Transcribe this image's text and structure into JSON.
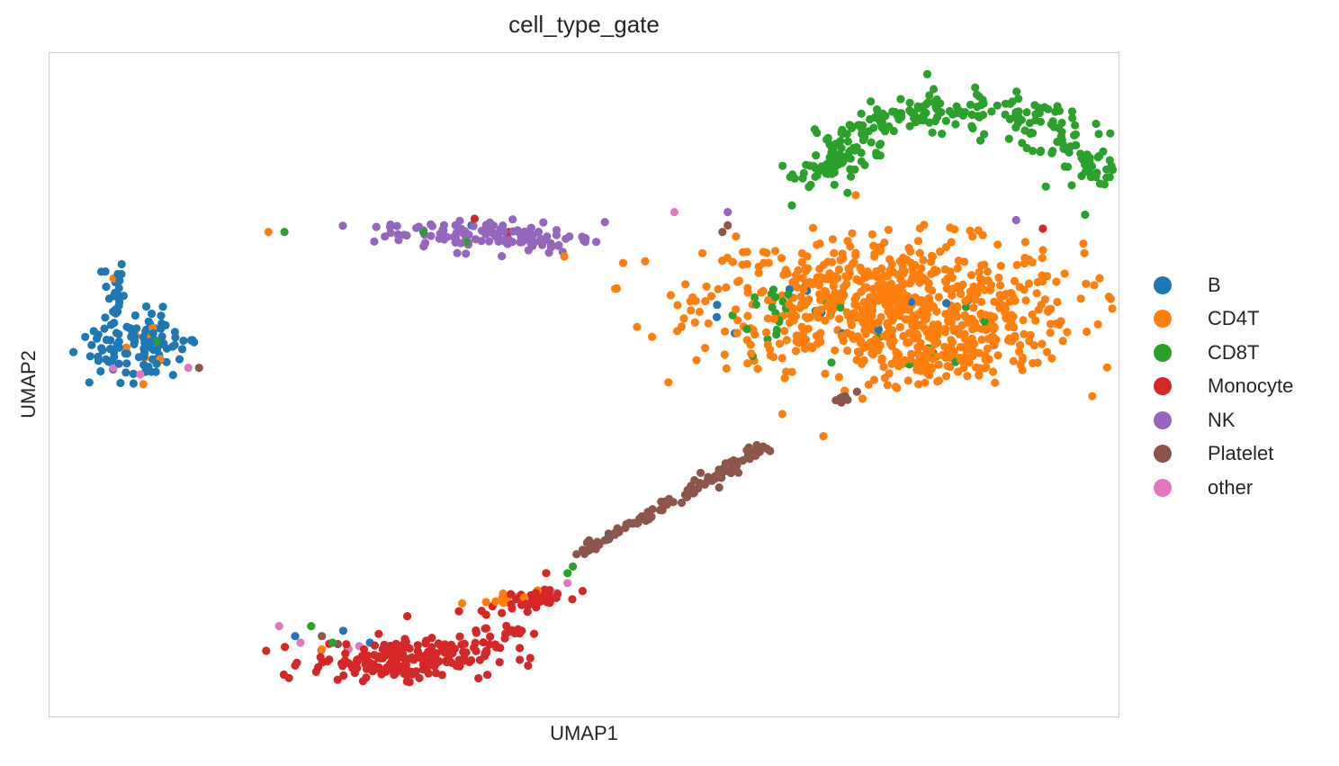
{
  "chart_data": {
    "type": "scatter",
    "title": "cell_type_gate",
    "xlabel": "UMAP1",
    "ylabel": "UMAP2",
    "grid": false,
    "xticks": false,
    "yticks": false,
    "xlim": [
      0,
      100
    ],
    "ylim": [
      0,
      100
    ],
    "legend_position": "right",
    "series": [
      {
        "name": "B",
        "color": "#1f77b4",
        "clusters": [
          {
            "shape": "blob",
            "n": 110,
            "cx": 8.2,
            "cy": 55.5,
            "sx": 2.4,
            "sy": 2.6,
            "rot": -0.6
          },
          {
            "shape": "blob",
            "n": 25,
            "cx": 6.0,
            "cy": 64.0,
            "sx": 0.5,
            "sy": 2.8,
            "rot": 0
          },
          {
            "shape": "blob",
            "n": 10,
            "cx": 73.0,
            "cy": 61.0,
            "sx": 10.0,
            "sy": 3.0,
            "rot": 0
          },
          {
            "shape": "points",
            "x": [
              23.0,
              27.5,
              52.5,
              39.5,
              62.5,
              30.0
            ],
            "y": [
              12.0,
              12.8,
              27.2,
              74.0,
              62.0,
              11.0
            ]
          }
        ]
      },
      {
        "name": "CD4T",
        "color": "#ff7f0e",
        "clusters": [
          {
            "shape": "blob",
            "n": 720,
            "cx": 78.5,
            "cy": 62.0,
            "sx": 8.8,
            "sy": 5.0,
            "rot": -0.05
          },
          {
            "shape": "blob",
            "n": 60,
            "cx": 87.0,
            "cy": 56.0,
            "sx": 3.0,
            "sy": 2.2,
            "rot": 0
          },
          {
            "shape": "blob",
            "n": 50,
            "cx": 81.0,
            "cy": 53.0,
            "sx": 2.8,
            "sy": 1.6,
            "rot": 0
          },
          {
            "shape": "blob",
            "n": 12,
            "cx": 42.5,
            "cy": 17.5,
            "sx": 1.3,
            "sy": 0.6,
            "rot": 0.2
          },
          {
            "shape": "blob",
            "n": 8,
            "cx": 8.5,
            "cy": 56.0,
            "sx": 2.0,
            "sy": 2.5,
            "rot": 0
          },
          {
            "shape": "points",
            "x": [
              20.5,
              6.0,
              25.5,
              42.5
            ],
            "y": [
              73.0,
              66.0,
              10.0,
              17.0
            ]
          }
        ]
      },
      {
        "name": "CD8T",
        "color": "#2ca02c",
        "clusters": [
          {
            "shape": "arc",
            "n": 280,
            "cx": 85.0,
            "cy": 73.0,
            "rx": 15.0,
            "ry": 18.5,
            "a0": 0.45,
            "a1": 2.75,
            "jitter": 1.6
          },
          {
            "shape": "blob",
            "n": 20,
            "cx": 68.0,
            "cy": 61.0,
            "sx": 1.8,
            "sy": 3.0,
            "rot": 0
          },
          {
            "shape": "blob",
            "n": 12,
            "cx": 78.0,
            "cy": 57.0,
            "sx": 5.0,
            "sy": 3.0,
            "rot": 0
          },
          {
            "shape": "points",
            "x": [
              22.0,
              26.5,
              39.0,
              35.0,
              48.5,
              49.0,
              10.0,
              80.5,
              24.5
            ],
            "y": [
              73.0,
              11.0,
              71.5,
              73.0,
              21.5,
              22.5,
              56.5,
              53.0,
              13.5
            ]
          }
        ]
      },
      {
        "name": "Monocyte",
        "color": "#d62728",
        "clusters": [
          {
            "shape": "blob",
            "n": 200,
            "cx": 33.0,
            "cy": 8.5,
            "sx": 4.2,
            "sy": 1.5,
            "rot": 0.05
          },
          {
            "shape": "blob",
            "n": 40,
            "cx": 45.5,
            "cy": 17.5,
            "sx": 2.2,
            "sy": 0.7,
            "rot": 0.3
          },
          {
            "shape": "blob",
            "n": 20,
            "cx": 42.0,
            "cy": 13.0,
            "sx": 1.5,
            "sy": 1.5,
            "rot": 0
          },
          {
            "shape": "points",
            "x": [
              39.8,
              43.0,
              93.0,
              46.5,
              33.5
            ],
            "y": [
              75.0,
              73.0,
              73.5,
              21.5,
              15.0
            ]
          }
        ]
      },
      {
        "name": "NK",
        "color": "#9467bd",
        "clusters": [
          {
            "shape": "blob",
            "n": 120,
            "cx": 41.0,
            "cy": 72.5,
            "sx": 5.2,
            "sy": 1.2,
            "rot": -0.06
          },
          {
            "shape": "points",
            "x": [
              52.0,
              90.5,
              63.5
            ],
            "y": [
              74.5,
              74.8,
              76.0
            ]
          }
        ]
      },
      {
        "name": "Platelet",
        "color": "#8c564b",
        "clusters": [
          {
            "shape": "line",
            "n": 110,
            "x0": 49.5,
            "y0": 24.5,
            "x1": 67.0,
            "y1": 40.5,
            "jitter": 0.45
          },
          {
            "shape": "line",
            "n": 10,
            "x0": 73.0,
            "y0": 47.0,
            "x1": 75.5,
            "y1": 48.5,
            "jitter": 0.3
          },
          {
            "shape": "points",
            "x": [
              63.0,
              63.5,
              14.0,
              73.0,
              25.5,
              27.0
            ],
            "y": [
              73.0,
              74.0,
              52.5,
              83.0,
              12.0,
              10.8
            ]
          }
        ]
      },
      {
        "name": "other",
        "color": "#e377c2",
        "clusters": [
          {
            "shape": "points",
            "x": [
              6.0,
              8.5,
              13.0,
              21.5,
              23.5,
              28.0,
              29.0,
              47.5,
              48.5,
              58.5
            ],
            "y": [
              52.5,
              51.5,
              52.5,
              13.5,
              11.0,
              10.0,
              10.5,
              18.5,
              20.0,
              76.0
            ]
          }
        ]
      }
    ]
  }
}
